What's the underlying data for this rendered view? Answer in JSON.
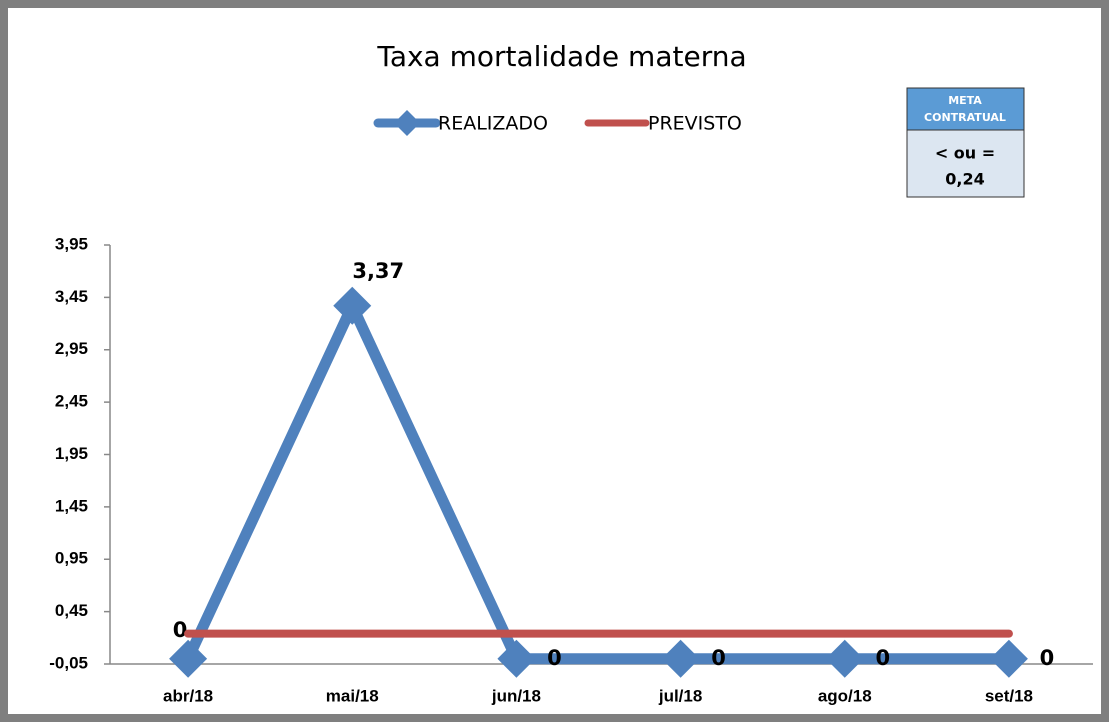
{
  "chart_data": {
    "type": "line",
    "title": "Taxa mortalidade materna",
    "categories": [
      "abr/18",
      "mai/18",
      "jun/18",
      "jul/18",
      "ago/18",
      "set/18"
    ],
    "series": [
      {
        "name": "REALIZADO",
        "color": "#4f81bd",
        "values": [
          0,
          3.37,
          0,
          0,
          0,
          0
        ],
        "value_labels": [
          "0",
          "3,37",
          "0",
          "0",
          "0",
          "0"
        ]
      },
      {
        "name": "PREVISTO",
        "color": "#c0504d",
        "values": [
          0.24,
          0.24,
          0.24,
          0.24,
          0.24,
          0.24
        ]
      }
    ],
    "ylim": [
      -0.05,
      3.95
    ],
    "yticks": [
      {
        "value": -0.05,
        "label": "-0,05"
      },
      {
        "value": 0.45,
        "label": "0,45"
      },
      {
        "value": 0.95,
        "label": "0,95"
      },
      {
        "value": 1.45,
        "label": "1,45"
      },
      {
        "value": 1.95,
        "label": "1,95"
      },
      {
        "value": 2.45,
        "label": "2,45"
      },
      {
        "value": 2.95,
        "label": "2,95"
      },
      {
        "value": 3.45,
        "label": "3,45"
      },
      {
        "value": 3.95,
        "label": "3,95"
      }
    ],
    "grid": false,
    "legend": "top",
    "meta_box": {
      "header": [
        "META",
        "CONTRATUAL"
      ],
      "lines": [
        "< ou =",
        "0,24"
      ]
    }
  }
}
